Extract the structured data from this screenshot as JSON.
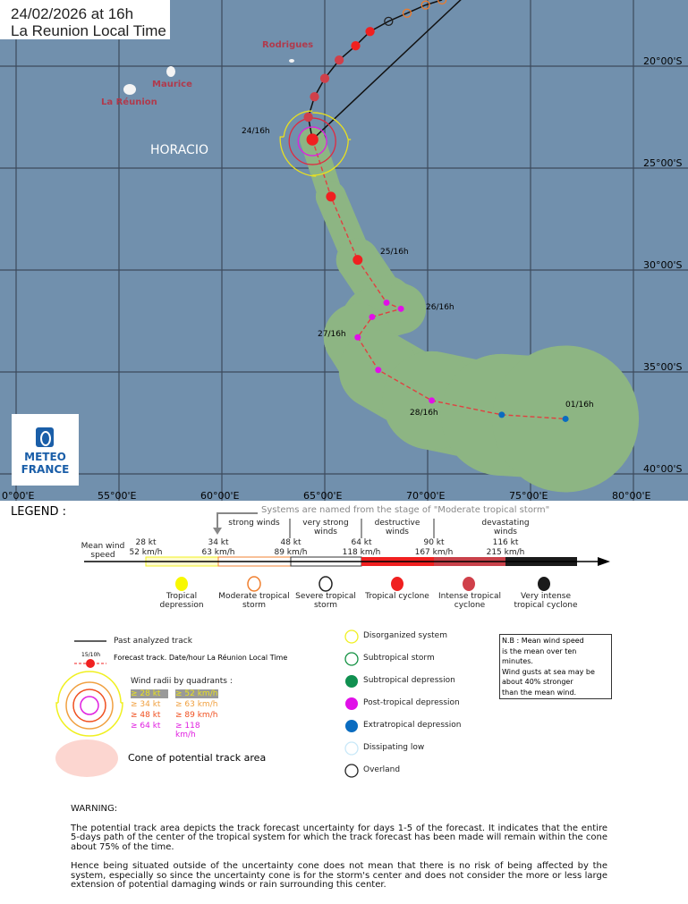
{
  "header": {
    "date_line": "24/02/2026 at 16h",
    "time_line": "La Reunion Local Time"
  },
  "map": {
    "storm_name": "HORACIO",
    "islands": [
      {
        "name": "Rodrigues",
        "lon": 63.4,
        "lat": 19.7
      },
      {
        "name": "Maurice",
        "lon": 57.5,
        "lat": 20.3
      },
      {
        "name": "La Réunion",
        "lon": 55.5,
        "lat": 21.1
      }
    ],
    "lon_labels": [
      "0°00'E",
      "55°00'E",
      "60°00'E",
      "65°00'E",
      "70°00'E",
      "75°00'E",
      "80°00'E"
    ],
    "lat_labels": [
      "20°00'S",
      "25°00'S",
      "30°00'S",
      "35°00'S",
      "40°00'S"
    ],
    "track_labels": [
      "24/16h",
      "25/16h",
      "26/16h",
      "27/16h",
      "28/16h",
      "01/16h"
    ],
    "past_track": [
      {
        "lon": 70.7,
        "lat": 16.75,
        "stage": "moderate"
      },
      {
        "lon": 69.9,
        "lat": 17.0,
        "stage": "moderate"
      },
      {
        "lon": 69.0,
        "lat": 17.4,
        "stage": "moderate"
      },
      {
        "lon": 68.1,
        "lat": 17.8,
        "stage": "severe"
      },
      {
        "lon": 67.2,
        "lat": 18.3,
        "stage": "tc"
      },
      {
        "lon": 66.5,
        "lat": 19.0,
        "stage": "tc"
      },
      {
        "lon": 65.7,
        "lat": 19.7,
        "stage": "intense"
      },
      {
        "lon": 65.0,
        "lat": 20.6,
        "stage": "intense"
      },
      {
        "lon": 64.5,
        "lat": 21.5,
        "stage": "intense"
      },
      {
        "lon": 64.2,
        "lat": 22.5,
        "stage": "intense"
      },
      {
        "lon": 64.4,
        "lat": 23.6,
        "stage": "tc"
      }
    ],
    "forecast_track": [
      {
        "lon": 65.3,
        "lat": 26.4,
        "stage": "tc"
      },
      {
        "lon": 66.6,
        "lat": 29.5,
        "stage": "tc"
      },
      {
        "lon": 68.0,
        "lat": 31.6,
        "stage": "post"
      },
      {
        "lon": 68.7,
        "lat": 31.9,
        "stage": "post"
      },
      {
        "lon": 67.3,
        "lat": 32.3,
        "stage": "post"
      },
      {
        "lon": 66.6,
        "lat": 33.3,
        "stage": "post"
      },
      {
        "lon": 67.6,
        "lat": 34.9,
        "stage": "post"
      },
      {
        "lon": 70.2,
        "lat": 36.4,
        "stage": "post"
      },
      {
        "lon": 73.6,
        "lat": 37.1,
        "stage": "extra"
      },
      {
        "lon": 76.7,
        "lat": 37.3,
        "stage": "extra"
      }
    ],
    "stage_colors": {
      "moderate": "#f07a28",
      "severe": "#222222",
      "tc": "#f02020",
      "intense": "#d0404a",
      "post": "#e010e8",
      "extra": "#0a6cc0"
    },
    "cone_color": "#8db583",
    "sea_color": "#7190ad"
  },
  "logo": {
    "line1": "METEO",
    "line2": "FRANCE"
  },
  "legend": {
    "title": "LEGEND :",
    "naming_note": "Systems are named from the stage of \"Moderate tropical storm\"",
    "mean_wind": "Mean wind speed",
    "thresholds": [
      {
        "kt": "28 kt",
        "kmh": "52 km/h"
      },
      {
        "kt": "34 kt",
        "kmh": "63 km/h"
      },
      {
        "kt": "48 kt",
        "kmh": "89 km/h"
      },
      {
        "kt": "64 kt",
        "kmh": "118 km/h"
      },
      {
        "kt": "90 kt",
        "kmh": "167 km/h"
      },
      {
        "kt": "116 kt",
        "kmh": "215 km/h"
      }
    ],
    "wind_classes": [
      "strong winds",
      "very strong winds",
      "destructive winds",
      "devastating winds"
    ],
    "stages": [
      "Tropical depression",
      "Moderate tropical storm",
      "Severe tropical storm",
      "Tropical cyclone",
      "Intense tropical cyclone",
      "Very intense tropical cyclone"
    ],
    "past_track": "Past analyzed track",
    "forecast_sample": "15/10h",
    "forecast_track": "Forecast track. Date/hour La Réunion Local Time",
    "wind_radii_title": "Wind radii by quadrants :",
    "wind_radii": [
      {
        "kt": "≥ 28 kt",
        "kmh": "≥ 52 km/h",
        "color": "#e8e020"
      },
      {
        "kt": "≥ 34 kt",
        "kmh": "≥ 63 km/h",
        "color": "#f0a040"
      },
      {
        "kt": "≥ 48 kt",
        "kmh": "≥ 89 km/h",
        "color": "#f05020"
      },
      {
        "kt": "≥ 64 kt",
        "kmh": "≥ 118 km/h",
        "color": "#e020e0"
      }
    ],
    "cone": "Cone of potential track area",
    "other_stages": [
      "Disorganized system",
      "Subtropical storm",
      "Subtropical depression",
      "Post-tropical depression",
      "Extratropical depression",
      "Dissipating low",
      "Overland"
    ],
    "nb": [
      "N.B : Mean wind speed",
      "is the mean over ten minutes.",
      "Wind gusts at sea may be",
      "about 40% stronger",
      "than the mean wind."
    ]
  },
  "warning": {
    "title": "WARNING:",
    "p1": "The potential track area depicts the track forecast uncertainty for days 1-5 of the forecast. It indicates that the entire 5-days path of the center of the tropical system for which the track forecast has been made will remain within the cone about 75% of the time.",
    "p2": "Hence being situated outside of the uncertainty cone does not mean that there is no risk of being affected by the system, especially so since the uncertainty cone is for the storm's center and does not consider the more or less large extension of potential damaging winds or rain surrounding this center."
  }
}
